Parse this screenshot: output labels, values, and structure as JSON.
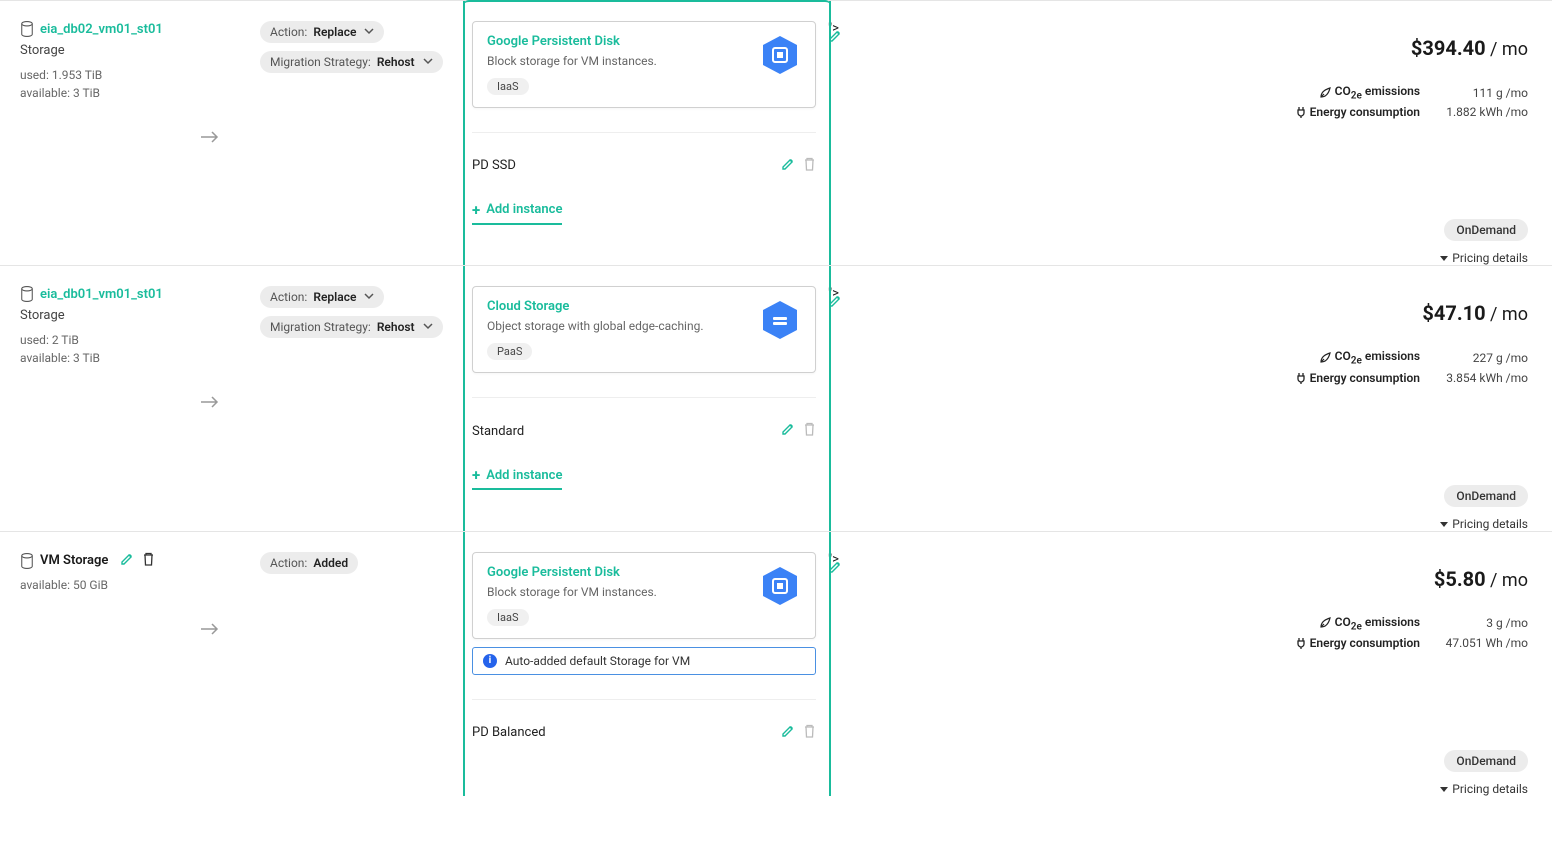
{
  "colors": {
    "accent": "#1abc9c",
    "hex_fill": "#3b82f6",
    "info_border": "#4a90e2",
    "pill_bg": "#ececec",
    "border": "#e5e5e5",
    "text_muted": "#666666"
  },
  "labels": {
    "action": "Action:",
    "migration_strategy": "Migration Strategy:",
    "add_instance": "Add instance",
    "co2e": "CO",
    "co2e_sub": "2e",
    "co2e_tail": " emissions",
    "energy": "Energy consumption",
    "pricing_details": "Pricing details",
    "per_mo": " / mo"
  },
  "rows": [
    {
      "source": {
        "name": "eia_db02_vm01_st01",
        "link": true,
        "type": "Storage",
        "used": "used: 1.953 TiB",
        "available": "available: 3 TiB",
        "show_arrow": true,
        "editable": false
      },
      "action": {
        "value": "Replace",
        "dropdown": true
      },
      "strategy": {
        "value": "Rehost",
        "show": true
      },
      "target": {
        "card": {
          "title": "Google Persistent Disk",
          "desc": "Block storage for VM instances.",
          "tag": "IaaS",
          "icon": "disk"
        },
        "instance": "PD SSD",
        "show_add": true,
        "info_banner": null
      },
      "cost": {
        "price": "$394.40",
        "co2e": "111 g /mo",
        "energy": "1.882 kWh /mo",
        "pricing_tag": "OnDemand"
      }
    },
    {
      "source": {
        "name": "eia_db01_vm01_st01",
        "link": true,
        "type": "Storage",
        "used": "used: 2 TiB",
        "available": "available: 3 TiB",
        "show_arrow": true,
        "editable": false
      },
      "action": {
        "value": "Replace",
        "dropdown": true
      },
      "strategy": {
        "value": "Rehost",
        "show": true
      },
      "target": {
        "card": {
          "title": "Cloud Storage",
          "desc": "Object storage with global edge-caching.",
          "tag": "PaaS",
          "icon": "bucket"
        },
        "instance": "Standard",
        "show_add": true,
        "info_banner": null
      },
      "cost": {
        "price": "$47.10",
        "co2e": "227 g /mo",
        "energy": "3.854 kWh /mo",
        "pricing_tag": "OnDemand"
      }
    },
    {
      "source": {
        "name": "VM Storage",
        "link": false,
        "type": null,
        "used": null,
        "available": "available: 50 GiB",
        "show_arrow": true,
        "editable": true
      },
      "action": {
        "value": "Added",
        "dropdown": false
      },
      "strategy": {
        "show": false
      },
      "target": {
        "card": {
          "title": "Google Persistent Disk",
          "desc": "Block storage for VM instances.",
          "tag": "IaaS",
          "icon": "disk"
        },
        "instance": "PD Balanced",
        "show_add": false,
        "info_banner": "Auto-added default Storage for VM"
      },
      "cost": {
        "price": "$5.80",
        "co2e": "3 g /mo",
        "energy": "47.051 Wh /mo",
        "pricing_tag": "OnDemand"
      }
    }
  ]
}
